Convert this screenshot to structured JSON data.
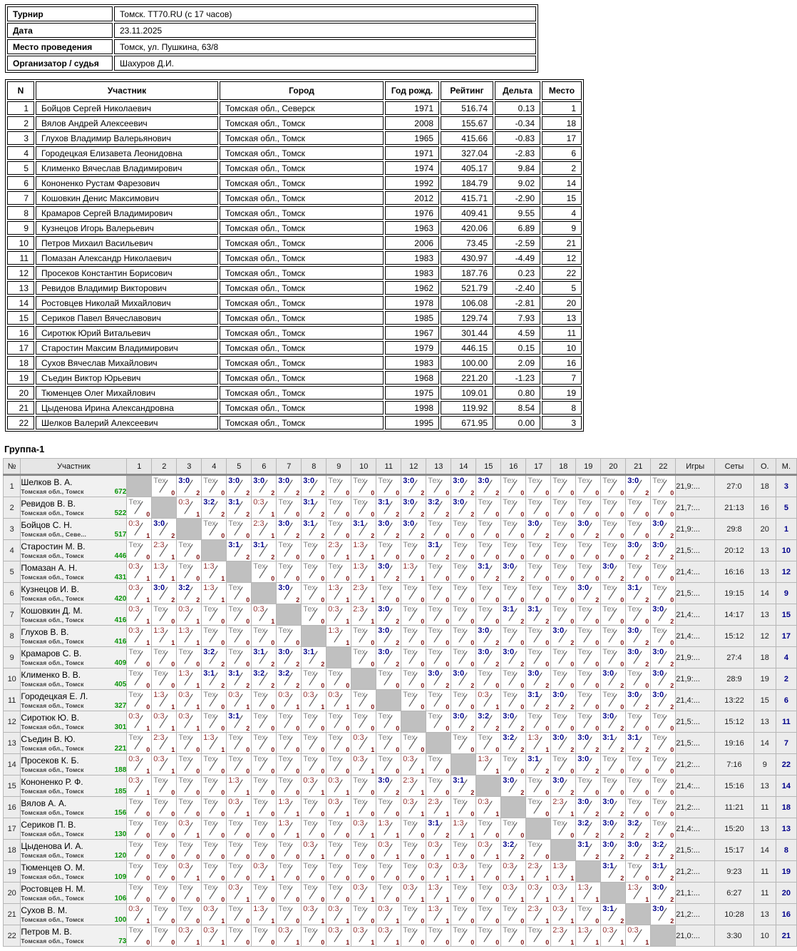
{
  "info_table": {
    "rows": [
      {
        "label": "Турнир",
        "value": "Томск. TT70.RU (с 17 часов)"
      },
      {
        "label": "Дата",
        "value": "23.11.2025"
      },
      {
        "label": "Место проведения",
        "value": "Томск, ул. Пушкина, 63/8"
      },
      {
        "label": "Организатор / судья",
        "value": "Шахуров Д.И."
      }
    ]
  },
  "participants": {
    "headers": [
      "N",
      "Участник",
      "Город",
      "Год рожд.",
      "Рейтинг",
      "Дельта",
      "Место"
    ],
    "rows": [
      [
        "1",
        "Бойцов Сергей Николаевич",
        "Томская обл., Северск",
        "1971",
        "516.74",
        "0.13",
        "1"
      ],
      [
        "2",
        "Вялов Андрей Алексеевич",
        "Томская обл., Томск",
        "2008",
        "155.67",
        "-0.34",
        "18"
      ],
      [
        "3",
        "Глухов Владимир Валерьянович",
        "Томская обл., Томск",
        "1965",
        "415.66",
        "-0.83",
        "17"
      ],
      [
        "4",
        "Городецкая Елизавета Леонидовна",
        "Томская обл., Томск",
        "1971",
        "327.04",
        "-2.83",
        "6"
      ],
      [
        "5",
        "Клименко Вячеслав Владимирович",
        "Томская обл., Томск",
        "1974",
        "405.17",
        "9.84",
        "2"
      ],
      [
        "6",
        "Кононенко Рустам Фарезович",
        "Томская обл., Томск",
        "1992",
        "184.79",
        "9.02",
        "14"
      ],
      [
        "7",
        "Кошовкин Денис Максимович",
        "Томская обл., Томск",
        "2012",
        "415.71",
        "-2.90",
        "15"
      ],
      [
        "8",
        "Крамаров Сергей Владимирович",
        "Томская обл., Томск",
        "1976",
        "409.41",
        "9.55",
        "4"
      ],
      [
        "9",
        "Кузнецов Игорь Валерьевич",
        "Томская обл., Томск",
        "1963",
        "420.06",
        "6.89",
        "9"
      ],
      [
        "10",
        "Петров Михаил Васильевич",
        "Томская обл., Томск",
        "2006",
        "73.45",
        "-2.59",
        "21"
      ],
      [
        "11",
        "Помазан Александр Николаевич",
        "Томская обл., Томск",
        "1983",
        "430.97",
        "-4.49",
        "12"
      ],
      [
        "12",
        "Просеков Константин Борисович",
        "Томская обл., Томск",
        "1983",
        "187.76",
        "0.23",
        "22"
      ],
      [
        "13",
        "Ревидов Владимир Викторович",
        "Томская обл., Томск",
        "1962",
        "521.79",
        "-2.40",
        "5"
      ],
      [
        "14",
        "Ростовцев Николай Михайлович",
        "Томская обл., Томск",
        "1978",
        "106.08",
        "-2.81",
        "20"
      ],
      [
        "15",
        "Сериков Павел Вячеславович",
        "Томская обл., Томск",
        "1985",
        "129.74",
        "7.93",
        "13"
      ],
      [
        "16",
        "Сиротюк Юрий Витальевич",
        "Томская обл., Томск",
        "1967",
        "301.44",
        "4.59",
        "11"
      ],
      [
        "17",
        "Старостин Максим Владимирович",
        "Томская обл., Томск",
        "1979",
        "446.15",
        "0.15",
        "10"
      ],
      [
        "18",
        "Сухов Вячеслав Михайлович",
        "Томская обл., Томск",
        "1983",
        "100.00",
        "2.09",
        "16"
      ],
      [
        "19",
        "Съедин Виктор Юрьевич",
        "Томская обл., Томск",
        "1968",
        "221.20",
        "-1.23",
        "7"
      ],
      [
        "20",
        "Тюменцев Олег Михайлович",
        "Томская обл., Томск",
        "1975",
        "109.01",
        "0.80",
        "19"
      ],
      [
        "21",
        "Цыденова Ирина Александровна",
        "Томская обл., Томск",
        "1998",
        "119.92",
        "8.54",
        "8"
      ],
      [
        "22",
        "Шелков Валерий Алексеевич",
        "Томская обл., Томск",
        "1995",
        "671.95",
        "0.00",
        "3"
      ]
    ]
  },
  "group": {
    "title": "Группа-1",
    "headers": {
      "num": "№",
      "name": "Участник",
      "games": "Игры",
      "sets": "Сеты",
      "points": "О.",
      "place": "М."
    },
    "col_numbers": [
      "1",
      "2",
      "3",
      "4",
      "5",
      "6",
      "7",
      "8",
      "9",
      "10",
      "11",
      "12",
      "13",
      "14",
      "15",
      "16",
      "17",
      "18",
      "19",
      "20",
      "21",
      "22"
    ],
    "rows": [
      {
        "num": "1",
        "name": "Шелков В. А.",
        "region": "Томская обл., Томск",
        "rating": "672",
        "cells": [
          "",
          "Тех|0",
          "3:0|2",
          "Тех|0",
          "3:0|2",
          "3:0|2",
          "3:0|2",
          "3:0|2",
          "Тех|0",
          "Тех|0",
          "Тех|0",
          "3:0|2",
          "Тех|0",
          "3:0|2",
          "3:0|2",
          "Тех|0",
          "Тех|0",
          "Тех|0",
          "Тех|0",
          "Тех|0",
          "3:0|2",
          "Тех|0"
        ],
        "games": "21,9:...",
        "sets": "27:0",
        "points": "18",
        "place": "3"
      },
      {
        "num": "2",
        "name": "Ревидов В. В.",
        "region": "Томская обл., Томск",
        "rating": "522",
        "cells": [
          "Тех|0",
          "",
          "0:3|1",
          "3:2|2",
          "3:1|2",
          "0:3|1",
          "Тех|0",
          "3:1|2",
          "Тех|0",
          "Тех|0",
          "3:1|2",
          "3:0|2",
          "3:2|2",
          "3:0|2",
          "Тех|0",
          "Тех|0",
          "Тех|0",
          "Тех|0",
          "Тех|0",
          "Тех|0",
          "Тех|0",
          "Тех|0"
        ],
        "games": "21,7:...",
        "sets": "21:13",
        "points": "16",
        "place": "5"
      },
      {
        "num": "3",
        "name": "Бойцов С. Н.",
        "region": "Томская обл., Севе...",
        "rating": "517",
        "cells": [
          "0:3|1",
          "3:0|2",
          "",
          "Тех|0",
          "Тех|0",
          "2:3|1",
          "3:0|2",
          "3:1|2",
          "Тех|0",
          "3:1|2",
          "3:0|2",
          "3:0|2",
          "Тех|0",
          "Тех|0",
          "Тех|0",
          "Тех|0",
          "3:0|2",
          "Тех|0",
          "3:0|2",
          "Тех|0",
          "Тех|0",
          "3:0|2"
        ],
        "games": "21,9:...",
        "sets": "29:8",
        "points": "20",
        "place": "1"
      },
      {
        "num": "4",
        "name": "Старостин М. В.",
        "region": "Томская обл., Томск",
        "rating": "446",
        "cells": [
          "Тех|0",
          "2:3|1",
          "Тех|0",
          "",
          "3:1|2",
          "3:1|2",
          "Тех|0",
          "Тех|0",
          "2:3|1",
          "1:3|1",
          "Тех|0",
          "Тех|0",
          "3:1|2",
          "Тех|0",
          "Тех|0",
          "Тех|0",
          "Тех|0",
          "Тех|0",
          "Тех|0",
          "Тех|0",
          "3:0|2",
          "3:0|2"
        ],
        "games": "21,5:...",
        "sets": "20:12",
        "points": "13",
        "place": "10"
      },
      {
        "num": "5",
        "name": "Помазан А. Н.",
        "region": "Томская обл., Томск",
        "rating": "431",
        "cells": [
          "0:3|1",
          "1:3|1",
          "Тех|0",
          "1:3|1",
          "",
          "Тех|0",
          "Тех|0",
          "Тех|0",
          "Тех|0",
          "1:3|1",
          "3:0|2",
          "1:3|1",
          "Тех|0",
          "Тех|0",
          "3:1|2",
          "3:0|2",
          "Тех|0",
          "Тех|0",
          "Тех|0",
          "3:0|2",
          "Тех|0",
          "Тех|0"
        ],
        "games": "21,4:...",
        "sets": "16:16",
        "points": "13",
        "place": "12"
      },
      {
        "num": "6",
        "name": "Кузнецов И. В.",
        "region": "Томская обл., Томск",
        "rating": "420",
        "cells": [
          "0:3|1",
          "3:0|2",
          "3:2|2",
          "1:3|1",
          "Тех|0",
          "",
          "3:0|2",
          "Тех|0",
          "1:3|1",
          "2:3|1",
          "Тех|0",
          "Тех|0",
          "Тех|0",
          "Тех|0",
          "Тех|0",
          "Тех|0",
          "Тех|0",
          "Тех|0",
          "3:0|2",
          "Тех|0",
          "3:1|2",
          "Тех|0"
        ],
        "games": "21,5:...",
        "sets": "19:15",
        "points": "14",
        "place": "9"
      },
      {
        "num": "7",
        "name": "Кошовкин Д. М.",
        "region": "Томская обл., Томск",
        "rating": "416",
        "cells": [
          "0:3|1",
          "Тех|0",
          "0:3|1",
          "Тех|0",
          "Тех|0",
          "0:3|1",
          "",
          "Тех|0",
          "0:3|1",
          "2:3|1",
          "3:0|2",
          "Тех|0",
          "Тех|0",
          "Тех|0",
          "Тех|0",
          "3:1|2",
          "3:1|2",
          "Тех|0",
          "Тех|0",
          "Тех|0",
          "Тех|0",
          "3:0|2"
        ],
        "games": "21,4:...",
        "sets": "14:17",
        "points": "13",
        "place": "15"
      },
      {
        "num": "8",
        "name": "Глухов В. В.",
        "region": "Томская обл., Томск",
        "rating": "416",
        "cells": [
          "0:3|1",
          "1:3|1",
          "1:3|1",
          "Тех|0",
          "Тех|0",
          "Тех|0",
          "Тех|0",
          "",
          "1:3|1",
          "Тех|0",
          "3:0|2",
          "Тех|0",
          "Тех|0",
          "Тех|0",
          "3:0|2",
          "Тех|0",
          "Тех|0",
          "3:0|2",
          "Тех|0",
          "Тех|0",
          "3:0|2",
          "Тех|0"
        ],
        "games": "21,4:...",
        "sets": "15:12",
        "points": "12",
        "place": "17"
      },
      {
        "num": "9",
        "name": "Крамаров С. В.",
        "region": "Томская обл., Томск",
        "rating": "409",
        "cells": [
          "Тех|0",
          "Тех|0",
          "Тех|0",
          "3:2|2",
          "Тех|0",
          "3:1|2",
          "3:0|2",
          "3:1|2",
          "",
          "Тех|0",
          "3:0|2",
          "Тех|0",
          "Тех|0",
          "Тех|0",
          "3:0|2",
          "3:0|2",
          "Тех|0",
          "Тех|0",
          "Тех|0",
          "Тех|0",
          "3:0|2",
          "3:0|2"
        ],
        "games": "21,9:...",
        "sets": "27:4",
        "points": "18",
        "place": "4"
      },
      {
        "num": "10",
        "name": "Клименко В. В.",
        "region": "Томская обл., Томск",
        "rating": "405",
        "cells": [
          "Тех|0",
          "Тех|0",
          "1:3|1",
          "3:1|2",
          "3:1|2",
          "3:2|2",
          "3:2|2",
          "Тех|0",
          "Тех|0",
          "",
          "Тех|0",
          "Тех|0",
          "3:0|2",
          "3:0|2",
          "Тех|0",
          "Тех|0",
          "3:0|2",
          "Тех|0",
          "Тех|0",
          "3:0|2",
          "Тех|0",
          "3:0|2"
        ],
        "games": "21,9:...",
        "sets": "28:9",
        "points": "19",
        "place": "2"
      },
      {
        "num": "11",
        "name": "Городецкая Е. Л.",
        "region": "Томская обл., Томск",
        "rating": "327",
        "cells": [
          "Тех|0",
          "1:3|1",
          "0:3|1",
          "Тех|0",
          "0:3|1",
          "Тех|0",
          "0:3|1",
          "0:3|1",
          "0:3|1",
          "Тех|0",
          "",
          "Тех|0",
          "Тех|0",
          "Тех|0",
          "0:3|1",
          "Тех|0",
          "3:1|2",
          "3:0|2",
          "Тех|0",
          "Тех|0",
          "3:0|2",
          "3:0|2"
        ],
        "games": "21,4:...",
        "sets": "13:22",
        "points": "15",
        "place": "6"
      },
      {
        "num": "12",
        "name": "Сиротюк Ю. В.",
        "region": "Томская обл., Томск",
        "rating": "301",
        "cells": [
          "0:3|1",
          "0:3|1",
          "0:3|1",
          "Тех|0",
          "3:1|2",
          "Тех|0",
          "Тех|0",
          "Тех|0",
          "Тех|0",
          "Тех|0",
          "Тех|0",
          "",
          "Тех|0",
          "3:0|2",
          "3:2|2",
          "3:0|2",
          "Тех|0",
          "Тех|0",
          "Тех|0",
          "3:0|2",
          "Тех|0",
          "Тех|0"
        ],
        "games": "21,5:...",
        "sets": "15:12",
        "points": "13",
        "place": "11"
      },
      {
        "num": "13",
        "name": "Съедин В. Ю.",
        "region": "Томская обл., Томск",
        "rating": "221",
        "cells": [
          "Тех|0",
          "2:3|1",
          "Тех|0",
          "1:3|1",
          "Тех|0",
          "Тех|0",
          "Тех|0",
          "Тех|0",
          "Тех|0",
          "0:3|1",
          "Тех|0",
          "Тех|0",
          "",
          "Тех|0",
          "Тех|0",
          "3:2|2",
          "1:3|1",
          "3:0|2",
          "3:0|2",
          "3:1|2",
          "3:1|2",
          "Тех|0"
        ],
        "games": "21,5:...",
        "sets": "19:16",
        "points": "14",
        "place": "7"
      },
      {
        "num": "14",
        "name": "Просеков К. Б.",
        "region": "Томская обл., Томск",
        "rating": "188",
        "cells": [
          "0:3|1",
          "0:3|1",
          "Тех|0",
          "Тех|0",
          "Тех|0",
          "Тех|0",
          "Тех|0",
          "Тех|0",
          "Тех|0",
          "0:3|1",
          "Тех|0",
          "0:3|1",
          "Тех|0",
          "",
          "1:3|1",
          "Тех|0",
          "3:1|2",
          "Тех|0",
          "3:0|2",
          "Тех|0",
          "Тех|0",
          "Тех|0"
        ],
        "games": "21,2:...",
        "sets": "7:16",
        "points": "9",
        "place": "22"
      },
      {
        "num": "15",
        "name": "Кононенко Р. Ф.",
        "region": "Томская обл., Томск",
        "rating": "185",
        "cells": [
          "0:3|1",
          "Тех|0",
          "Тех|0",
          "Тех|0",
          "1:3|1",
          "Тех|0",
          "Тех|0",
          "0:3|1",
          "0:3|1",
          "Тех|0",
          "3:0|2",
          "2:3|1",
          "Тех|0",
          "3:1|2",
          "",
          "3:0|2",
          "Тех|0",
          "3:0|2",
          "Тех|0",
          "Тех|0",
          "Тех|0",
          "Тех|0"
        ],
        "games": "21,4:...",
        "sets": "15:16",
        "points": "13",
        "place": "14"
      },
      {
        "num": "16",
        "name": "Вялов А. А.",
        "region": "Томская обл., Томск",
        "rating": "156",
        "cells": [
          "Тех|0",
          "Тех|0",
          "Тех|0",
          "Тех|0",
          "0:3|1",
          "Тех|0",
          "1:3|1",
          "Тех|0",
          "0:3|1",
          "Тех|0",
          "Тех|0",
          "0:3|1",
          "2:3|1",
          "Тех|0",
          "0:3|1",
          "",
          "Тех|0",
          "2:3|1",
          "3:0|2",
          "3:0|2",
          "Тех|0",
          "Тех|0"
        ],
        "games": "21,2:...",
        "sets": "11:21",
        "points": "11",
        "place": "18"
      },
      {
        "num": "17",
        "name": "Сериков П. В.",
        "region": "Томская обл., Томск",
        "rating": "130",
        "cells": [
          "Тех|0",
          "Тех|0",
          "0:3|1",
          "Тех|0",
          "Тех|0",
          "Тех|0",
          "1:3|1",
          "Тех|0",
          "Тех|0",
          "0:3|1",
          "1:3|1",
          "Тех|0",
          "3:1|2",
          "1:3|1",
          "Тех|0",
          "Тех|0",
          "",
          "Тех|0",
          "3:2|2",
          "3:0|2",
          "3:2|2",
          "Тех|0"
        ],
        "games": "21,4:...",
        "sets": "15:20",
        "points": "13",
        "place": "13"
      },
      {
        "num": "18",
        "name": "Цыденова И. А.",
        "region": "Томская обл., Томск",
        "rating": "120",
        "cells": [
          "Тех|0",
          "Тех|0",
          "Тех|0",
          "Тех|0",
          "Тех|0",
          "Тех|0",
          "Тех|0",
          "0:3|1",
          "Тех|0",
          "Тех|0",
          "0:3|1",
          "Тех|0",
          "0:3|1",
          "Тех|0",
          "0:3|1",
          "3:2|2",
          "Тех|0",
          "",
          "3:1|2",
          "3:0|2",
          "3:0|2",
          "3:2|2"
        ],
        "games": "21,5:...",
        "sets": "15:17",
        "points": "14",
        "place": "8"
      },
      {
        "num": "19",
        "name": "Тюменцев О. М.",
        "region": "Томская обл., Томск",
        "rating": "109",
        "cells": [
          "Тех|0",
          "Тех|0",
          "0:3|1",
          "Тех|0",
          "Тех|0",
          "0:3|1",
          "Тех|0",
          "Тех|0",
          "Тех|0",
          "Тех|0",
          "Тех|0",
          "Тех|0",
          "0:3|1",
          "0:3|1",
          "Тех|0",
          "0:3|1",
          "2:3|1",
          "1:3|1",
          "",
          "3:1|2",
          "Тех|0",
          "3:1|2"
        ],
        "games": "21,2:...",
        "sets": "9:23",
        "points": "11",
        "place": "19"
      },
      {
        "num": "20",
        "name": "Ростовцев Н. М.",
        "region": "Томская обл., Томск",
        "rating": "106",
        "cells": [
          "Тех|0",
          "Тех|0",
          "Тех|0",
          "Тех|0",
          "0:3|1",
          "Тех|0",
          "Тех|0",
          "Тех|0",
          "Тех|0",
          "0:3|1",
          "Тех|0",
          "0:3|1",
          "1:3|1",
          "Тех|0",
          "Тех|0",
          "0:3|1",
          "0:3|1",
          "0:3|1",
          "1:3|1",
          "",
          "1:3|1",
          "3:0|2"
        ],
        "games": "21,1:...",
        "sets": "6:27",
        "points": "11",
        "place": "20"
      },
      {
        "num": "21",
        "name": "Сухов В. М.",
        "region": "Томская обл., Томск",
        "rating": "100",
        "cells": [
          "0:3|1",
          "Тех|0",
          "Тех|0",
          "0:3|1",
          "Тех|0",
          "1:3|1",
          "Тех|0",
          "0:3|1",
          "0:3|1",
          "Тех|0",
          "0:3|1",
          "Тех|0",
          "1:3|1",
          "Тех|0",
          "Тех|0",
          "Тех|0",
          "2:3|1",
          "0:3|1",
          "Тех|0",
          "3:1|2",
          "",
          "3:0|2"
        ],
        "games": "21,2:...",
        "sets": "10:28",
        "points": "13",
        "place": "16"
      },
      {
        "num": "22",
        "name": "Петров М. В.",
        "region": "Томская обл., Томск",
        "rating": "73",
        "cells": [
          "Тех|0",
          "Тех|0",
          "0:3|1",
          "0:3|1",
          "Тех|0",
          "Тех|0",
          "0:3|1",
          "Тех|0",
          "0:3|1",
          "0:3|1",
          "0:3|1",
          "Тех|0",
          "Тех|0",
          "Тех|0",
          "Тех|0",
          "Тех|0",
          "Тех|0",
          "2:3|1",
          "1:3|1",
          "0:3|1",
          "0:3|1",
          ""
        ],
        "games": "21,0:...",
        "sets": "3:30",
        "points": "10",
        "place": "21"
      }
    ]
  },
  "colors": {
    "win_score": "#00008b",
    "loss_score": "#953434",
    "tech_score": "#848484",
    "corner_points": "#7d1111",
    "rating_green": "#089408",
    "place_navy": "#00008b",
    "diagonal_gray": "#c0c0c0",
    "header_gray": "#e6e6e6"
  }
}
